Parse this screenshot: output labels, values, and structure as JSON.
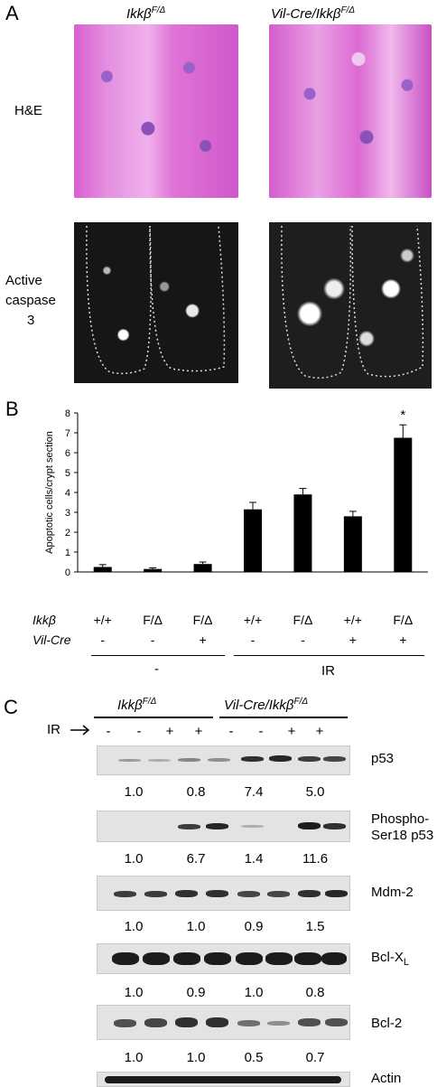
{
  "panel_a": {
    "letter": "A",
    "col_left": "Ikkβ",
    "col_left_sup": "F/Δ",
    "col_right": "Vil-Cre/Ikkβ",
    "col_right_sup": "F/Δ",
    "row1_label": "H&E",
    "row2_label_line1": "Active",
    "row2_label_line2": "caspase",
    "row2_label_line3": "3"
  },
  "panel_b": {
    "letter": "B",
    "ylabel": "Apoptotic cells/crypt section",
    "genotype_label": "Ikkβ",
    "cre_label": "Vil-Cre",
    "ikk_values": [
      "+/+",
      "F/Δ",
      "F/Δ",
      "+/+",
      "F/Δ",
      "+/+",
      "F/Δ"
    ],
    "cre_values": [
      "-",
      "-",
      "+",
      "-",
      "-",
      "+",
      "+"
    ],
    "group_minus": "-",
    "group_ir": "IR",
    "star": "*"
  },
  "chart_data": {
    "type": "bar",
    "categories": [
      "+/+ / - / -",
      "F/Δ / - / -",
      "F/Δ / + / -",
      "+/+ / - / IR",
      "F/Δ / - / IR",
      "+/+ / + / IR",
      "F/Δ / + / IR"
    ],
    "values": [
      0.25,
      0.15,
      0.4,
      3.15,
      3.9,
      2.8,
      6.75
    ],
    "errors": [
      0.12,
      0.06,
      0.1,
      0.35,
      0.3,
      0.25,
      0.65
    ],
    "ylabel": "Apoptotic cells/crypt section",
    "ylim": [
      0,
      8
    ],
    "yticks": [
      "0",
      "1",
      "2",
      "3",
      "4",
      "5",
      "6",
      "7",
      "8"
    ],
    "significance": [
      null,
      null,
      null,
      null,
      null,
      null,
      "*"
    ],
    "grid": false
  },
  "panel_c": {
    "letter": "C",
    "group_left": "Ikkβ",
    "group_left_sup": "F/Δ",
    "group_right": "Vil-Cre/Ikkβ",
    "group_right_sup": "F/Δ",
    "ir_label": "IR",
    "ir_signs": [
      "-",
      "-",
      "+",
      "+",
      "-",
      "-",
      "+",
      "+"
    ],
    "blots": [
      {
        "label": "p53",
        "quant": [
          "1.0",
          "0.8",
          "7.4",
          "5.0"
        ]
      },
      {
        "label_line1": "Phospho-",
        "label_line2": "Ser18 p53",
        "quant": [
          "1.0",
          "6.7",
          "1.4",
          "11.6"
        ]
      },
      {
        "label": "Mdm-2",
        "quant": [
          "1.0",
          "1.0",
          "0.9",
          "1.5"
        ]
      },
      {
        "label": "Bcl-X",
        "label_sub": "L",
        "quant": [
          "1.0",
          "0.9",
          "1.0",
          "0.8"
        ]
      },
      {
        "label": "Bcl-2",
        "quant": [
          "1.0",
          "1.0",
          "0.5",
          "0.7"
        ]
      },
      {
        "label": "Actin"
      }
    ]
  }
}
